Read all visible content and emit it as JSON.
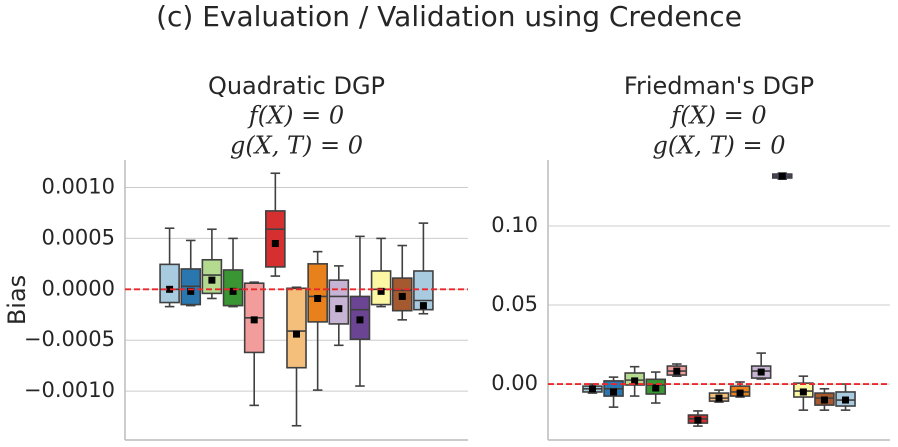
{
  "suptitle": "(c) Evaluation / Validation using Credence",
  "chart_data": [
    {
      "type": "box",
      "title": "Quadratic DGP",
      "title_lines": [
        "f(X) = 0",
        "g(X, T) = 0"
      ],
      "ylabel": "Bias",
      "ylim": [
        -0.00148,
        0.00127
      ],
      "yticks": [
        {
          "value": 0.001,
          "label": "0.0010"
        },
        {
          "value": 0.0005,
          "label": "0.0005"
        },
        {
          "value": 0,
          "label": "0.0000"
        },
        {
          "value": -0.0005,
          "label": "−0.0005"
        },
        {
          "value": -0.001,
          "label": "−0.0010"
        }
      ],
      "grid": true,
      "hline": 0,
      "hline_color": "#e8282b",
      "boxes": [
        {
          "color": "#a8cbe0",
          "whislo": -0.00017,
          "q1": -0.00013,
          "med": 0,
          "q3": 0.000245,
          "whishi": 0.0006,
          "mean": 0
        },
        {
          "color": "#2a76ae",
          "whislo": -0.00016,
          "q1": -0.00015,
          "med": 3e-05,
          "q3": 0.0002,
          "whishi": 0.00048,
          "mean": -2e-05
        },
        {
          "color": "#b3da8f",
          "whislo": -9e-05,
          "q1": -4e-05,
          "med": 0.00014,
          "q3": 0.00029,
          "whishi": 0.00059,
          "mean": 9e-05
        },
        {
          "color": "#3a9632",
          "whislo": -0.00017,
          "q1": -0.00016,
          "med": 0,
          "q3": 0.00019,
          "whishi": 0.0005,
          "mean": -2e-05
        },
        {
          "color": "#f29d9c",
          "whislo": -0.00114,
          "q1": -0.00062,
          "med": -0.00028,
          "q3": 6e-05,
          "whishi": 7e-05,
          "mean": -0.0003
        },
        {
          "color": "#d62f2f",
          "whislo": 0.00013,
          "q1": 0.00022,
          "med": 0.00059,
          "q3": 0.00077,
          "whishi": 0.00114,
          "mean": 0.00045
        },
        {
          "color": "#f3bf7a",
          "whislo": -0.00134,
          "q1": -0.00077,
          "med": -0.00041,
          "q3": 1e-05,
          "whishi": 2e-05,
          "mean": -0.00044
        },
        {
          "color": "#e8801c",
          "whislo": -0.00099,
          "q1": -0.00032,
          "med": -7e-05,
          "q3": 0.00025,
          "whishi": 0.00037,
          "mean": -9e-05
        },
        {
          "color": "#c7b4d4",
          "whislo": -0.00055,
          "q1": -0.00034,
          "med": -7e-05,
          "q3": 9e-05,
          "whishi": 0.00023,
          "mean": -0.00019
        },
        {
          "color": "#6b4494",
          "whislo": -0.00095,
          "q1": -0.00049,
          "med": -0.0002,
          "q3": -7e-05,
          "whishi": 0.00052,
          "mean": -0.0003
        },
        {
          "color": "#fbf7a3",
          "whislo": -0.00017,
          "q1": -0.00015,
          "med": 0,
          "q3": 0.00018,
          "whishi": 0.0005,
          "mean": -2e-05
        },
        {
          "color": "#a45a2e",
          "whislo": -0.0003,
          "q1": -0.00021,
          "med": -1e-05,
          "q3": 0.00011,
          "whishi": 0.00043,
          "mean": -7e-05
        },
        {
          "color": "#a8cbe0",
          "whislo": -0.00024,
          "q1": -0.0002,
          "med": -0.00011,
          "q3": 0.00018,
          "whishi": 0.00065,
          "mean": -0.00016
        }
      ]
    },
    {
      "type": "box",
      "title": "Friedman's DGP",
      "title_lines": [
        "f(X) = 0",
        "g(X, T) = 0"
      ],
      "ylim": [
        -0.0354,
        0.1418
      ],
      "yticks": [
        {
          "value": 0.1,
          "label": "0.10"
        },
        {
          "value": 0.05,
          "label": "0.05"
        },
        {
          "value": 0,
          "label": "0.00"
        }
      ],
      "grid": true,
      "hline": 0,
      "hline_color": "#e8282b",
      "boxes": [
        {
          "color": "#a8cbe0",
          "whislo": -0.0057,
          "q1": -0.005,
          "med": -0.003,
          "q3": -0.0013,
          "whishi": 0,
          "mean": -0.003
        },
        {
          "color": "#2a76ae",
          "whislo": -0.0146,
          "q1": -0.0076,
          "med": -0.003,
          "q3": 0.002,
          "whishi": 0.0044,
          "mean": -0.005
        },
        {
          "color": "#b3da8f",
          "whislo": -0.0076,
          "q1": -0.0006,
          "med": 0.0025,
          "q3": 0.007,
          "whishi": 0.011,
          "mean": 0.002
        },
        {
          "color": "#3a9632",
          "whislo": -0.012,
          "q1": -0.0063,
          "med": -0.0006,
          "q3": 0.003,
          "whishi": 0.0076,
          "mean": -0.0025
        },
        {
          "color": "#f29d9c",
          "whislo": 0.005,
          "q1": 0.0057,
          "med": 0.0082,
          "q3": 0.0114,
          "whishi": 0.0127,
          "mean": 0.0082
        },
        {
          "color": "#d62f2f",
          "whislo": -0.0266,
          "q1": -0.0247,
          "med": -0.022,
          "q3": -0.0196,
          "whishi": -0.017,
          "mean": -0.0228
        },
        {
          "color": "#f3bf7a",
          "whislo": -0.0114,
          "q1": -0.0108,
          "med": -0.0089,
          "q3": -0.0057,
          "whishi": -0.0038,
          "mean": -0.0089
        },
        {
          "color": "#e8801c",
          "whislo": -0.0082,
          "q1": -0.0076,
          "med": -0.005,
          "q3": -0.0013,
          "whishi": 0.0013,
          "mean": -0.0057
        },
        {
          "color": "#c7b4d4",
          "whislo": 0.0032,
          "q1": 0.0038,
          "med": 0.0082,
          "q3": 0.0114,
          "whishi": 0.0196,
          "mean": 0.0076
        },
        {
          "color": "#6b4494",
          "whislo": 0.1297,
          "q1": 0.1304,
          "med": 0.1316,
          "q3": 0.1329,
          "whishi": 0.1335,
          "mean": 0.1316
        },
        {
          "color": "#fbf7a3",
          "whislo": -0.0165,
          "q1": -0.0082,
          "med": -0.0044,
          "q3": 0.0006,
          "whishi": 0.005,
          "mean": -0.005
        },
        {
          "color": "#a45a2e",
          "whislo": -0.0165,
          "q1": -0.0133,
          "med": -0.0089,
          "q3": -0.0057,
          "whishi": -0.003,
          "mean": -0.0101
        },
        {
          "color": "#a8cbe0",
          "whislo": -0.0165,
          "q1": -0.0139,
          "med": -0.0101,
          "q3": -0.005,
          "whishi": 0,
          "mean": -0.0101
        }
      ]
    }
  ]
}
